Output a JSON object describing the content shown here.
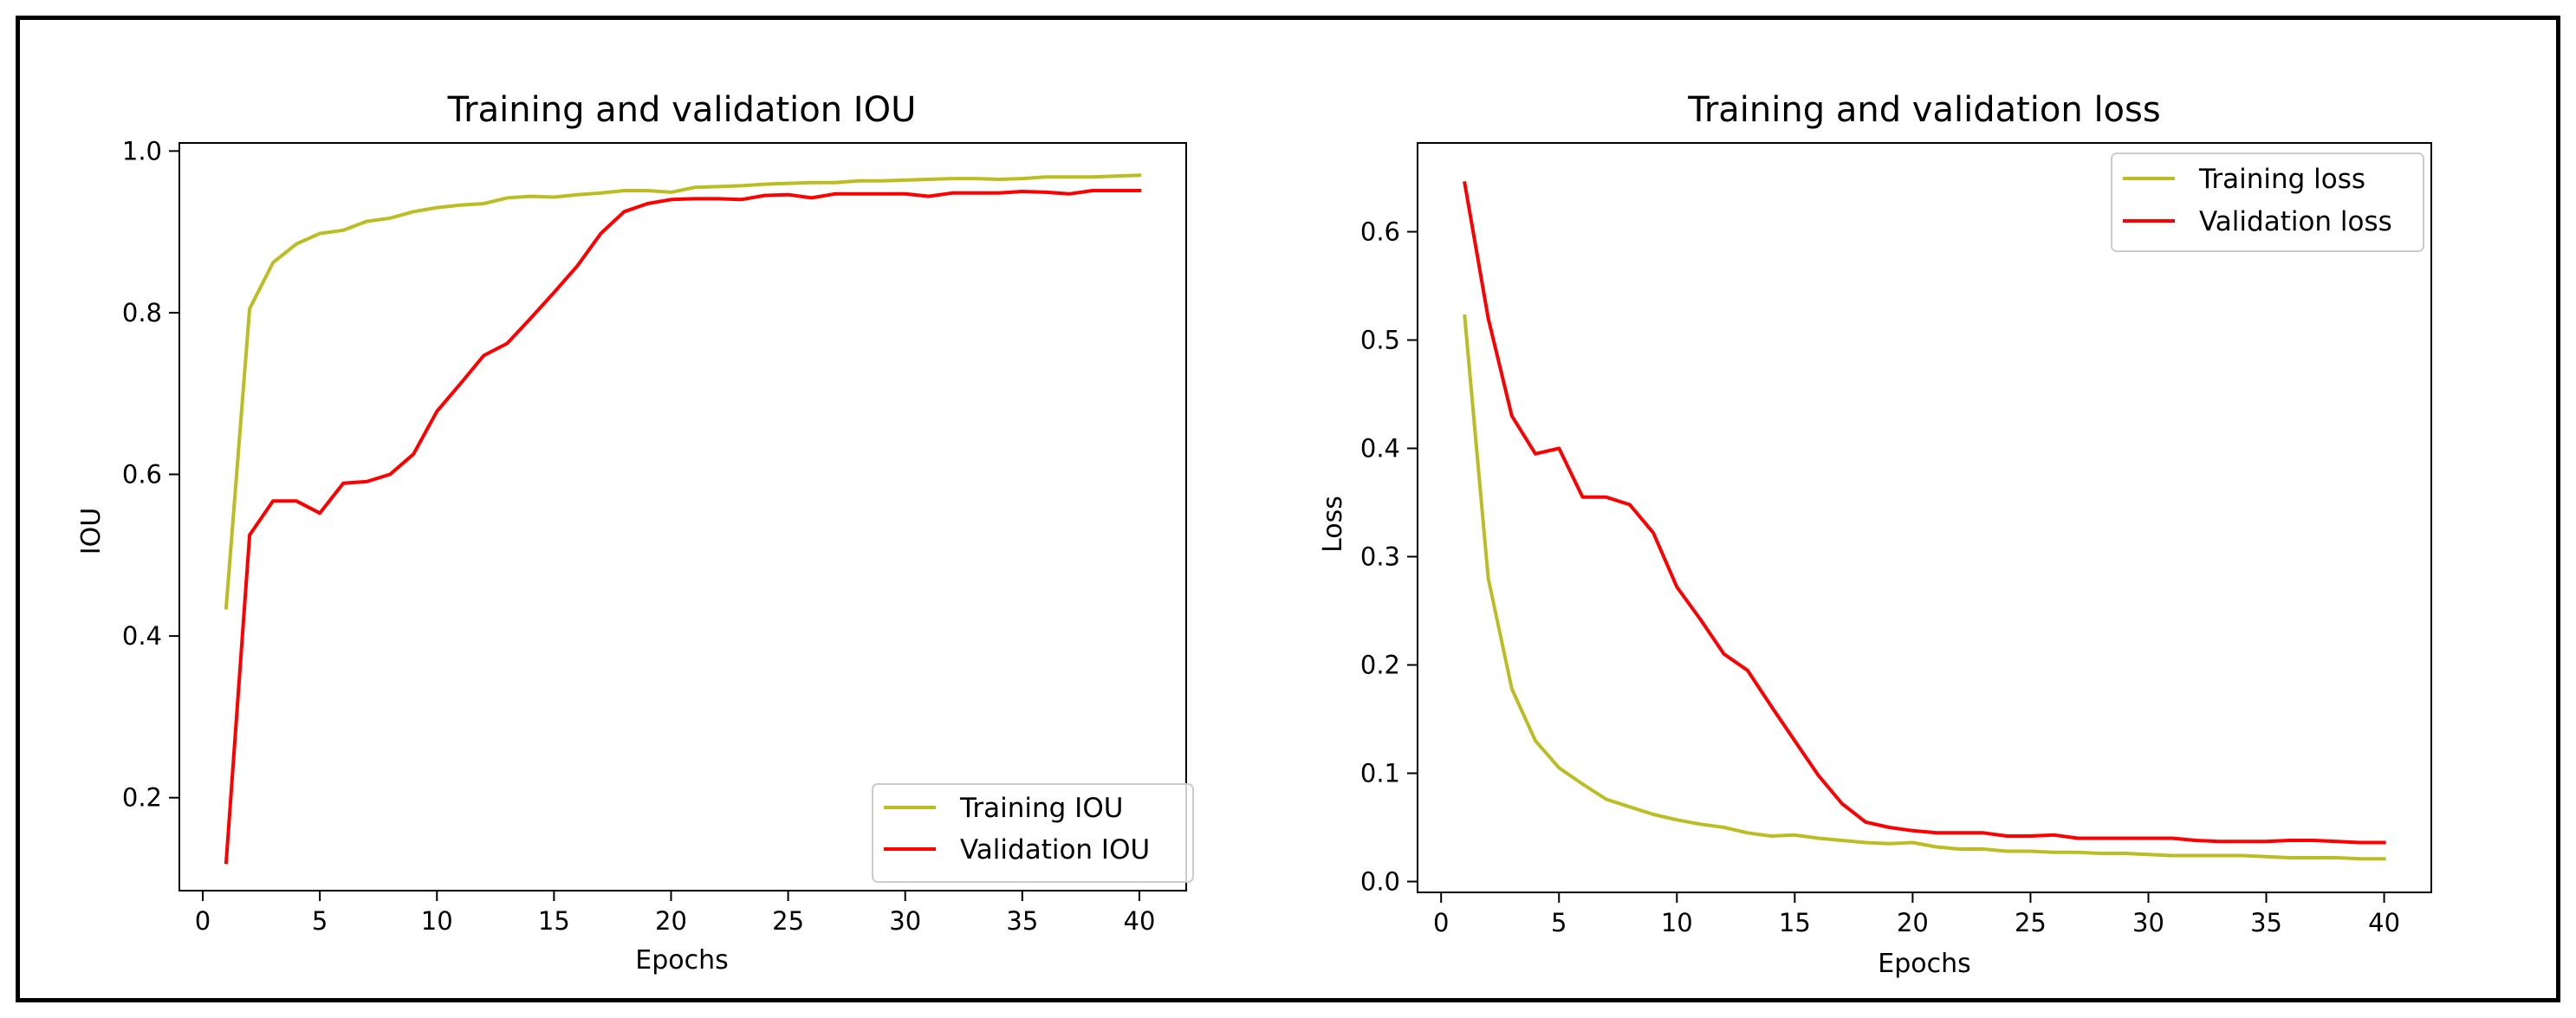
{
  "charts": [
    {
      "type": "line",
      "title": "Training and validation IOU",
      "xlabel": "Epochs",
      "ylabel": "IOU",
      "xlim": [
        -1,
        42
      ],
      "ylim": [
        0.085,
        1.01
      ],
      "xticks": [
        0,
        5,
        10,
        15,
        20,
        25,
        30,
        35,
        40
      ],
      "yticks": [
        0.2,
        0.4,
        0.6,
        0.8,
        1.0
      ],
      "ytick_labels": [
        "0.2",
        "0.4",
        "0.6",
        "0.8",
        "1.0"
      ],
      "legend": "lower-right",
      "x": [
        1,
        2,
        3,
        4,
        5,
        6,
        7,
        8,
        9,
        10,
        11,
        12,
        13,
        14,
        15,
        16,
        17,
        18,
        19,
        20,
        21,
        22,
        23,
        24,
        25,
        26,
        27,
        28,
        29,
        30,
        31,
        32,
        33,
        34,
        35,
        36,
        37,
        38,
        39,
        40
      ],
      "series": [
        {
          "name": "Training IOU",
          "color": "#bcbd22",
          "values": [
            0.435,
            0.805,
            0.862,
            0.885,
            0.898,
            0.902,
            0.913,
            0.917,
            0.925,
            0.93,
            0.933,
            0.935,
            0.942,
            0.944,
            0.943,
            0.946,
            0.948,
            0.951,
            0.951,
            0.949,
            0.955,
            0.956,
            0.957,
            0.959,
            0.96,
            0.961,
            0.961,
            0.963,
            0.963,
            0.964,
            0.965,
            0.966,
            0.966,
            0.965,
            0.966,
            0.968,
            0.968,
            0.968,
            0.969,
            0.97
          ]
        },
        {
          "name": "Validation IOU",
          "color": "#ff0000",
          "values": [
            0.12,
            0.525,
            0.567,
            0.567,
            0.552,
            0.589,
            0.591,
            0.6,
            0.625,
            0.678,
            0.712,
            0.747,
            0.762,
            0.793,
            0.825,
            0.858,
            0.898,
            0.925,
            0.935,
            0.94,
            0.941,
            0.941,
            0.94,
            0.945,
            0.946,
            0.942,
            0.947,
            0.947,
            0.947,
            0.947,
            0.944,
            0.948,
            0.948,
            0.948,
            0.95,
            0.949,
            0.947,
            0.951,
            0.951,
            0.951
          ]
        }
      ]
    },
    {
      "type": "line",
      "title": "Training and validation loss",
      "xlabel": "Epochs",
      "ylabel": "Loss",
      "xlim": [
        -1,
        42
      ],
      "ylim": [
        -0.01,
        0.682
      ],
      "xticks": [
        0,
        5,
        10,
        15,
        20,
        25,
        30,
        35,
        40
      ],
      "yticks": [
        0.0,
        0.1,
        0.2,
        0.3,
        0.4,
        0.5,
        0.6
      ],
      "ytick_labels": [
        "0.0",
        "0.1",
        "0.2",
        "0.3",
        "0.4",
        "0.5",
        "0.6"
      ],
      "legend": "upper-right",
      "x": [
        1,
        2,
        3,
        4,
        5,
        6,
        7,
        8,
        9,
        10,
        11,
        12,
        13,
        14,
        15,
        16,
        17,
        18,
        19,
        20,
        21,
        22,
        23,
        24,
        25,
        26,
        27,
        28,
        29,
        30,
        31,
        32,
        33,
        34,
        35,
        36,
        37,
        38,
        39,
        40
      ],
      "series": [
        {
          "name": "Training loss",
          "color": "#bcbd22",
          "values": [
            0.522,
            0.28,
            0.178,
            0.13,
            0.105,
            0.09,
            0.076,
            0.069,
            0.062,
            0.057,
            0.053,
            0.05,
            0.045,
            0.042,
            0.043,
            0.04,
            0.038,
            0.036,
            0.035,
            0.036,
            0.032,
            0.03,
            0.03,
            0.028,
            0.028,
            0.027,
            0.027,
            0.026,
            0.026,
            0.025,
            0.024,
            0.024,
            0.024,
            0.024,
            0.023,
            0.022,
            0.022,
            0.022,
            0.021,
            0.021
          ]
        },
        {
          "name": "Validation loss",
          "color": "#ff0000",
          "values": [
            0.645,
            0.52,
            0.43,
            0.395,
            0.4,
            0.355,
            0.355,
            0.348,
            0.322,
            0.272,
            0.242,
            0.21,
            0.195,
            0.162,
            0.13,
            0.098,
            0.072,
            0.055,
            0.05,
            0.047,
            0.045,
            0.045,
            0.045,
            0.042,
            0.042,
            0.043,
            0.04,
            0.04,
            0.04,
            0.04,
            0.04,
            0.038,
            0.037,
            0.037,
            0.037,
            0.038,
            0.038,
            0.037,
            0.036,
            0.036
          ]
        }
      ]
    }
  ]
}
